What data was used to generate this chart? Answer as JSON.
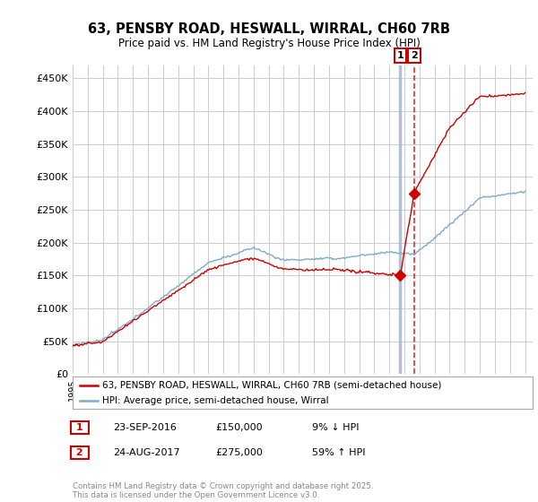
{
  "title_line1": "63, PENSBY ROAD, HESWALL, WIRRAL, CH60 7RB",
  "title_line2": "Price paid vs. HM Land Registry's House Price Index (HPI)",
  "ylim": [
    0,
    470000
  ],
  "yticks": [
    0,
    50000,
    100000,
    150000,
    200000,
    250000,
    300000,
    350000,
    400000,
    450000
  ],
  "ytick_labels": [
    "£0",
    "£50K",
    "£100K",
    "£150K",
    "£200K",
    "£250K",
    "£300K",
    "£350K",
    "£400K",
    "£450K"
  ],
  "x_start_year": 1995,
  "x_end_year": 2025,
  "sale1_date": 2016.73,
  "sale1_price": 150000,
  "sale1_label": "1",
  "sale2_date": 2017.65,
  "sale2_price": 275000,
  "sale2_label": "2",
  "hpi_color": "#7faacc",
  "price_color": "#cc0000",
  "sale1_vline_color": "#aabbcc",
  "sale2_vline_color": "#dd3333",
  "background_color": "#ffffff",
  "grid_color": "#cccccc",
  "legend_label_price": "63, PENSBY ROAD, HESWALL, WIRRAL, CH60 7RB (semi-detached house)",
  "legend_label_hpi": "HPI: Average price, semi-detached house, Wirral",
  "annotation1_date": "23-SEP-2016",
  "annotation1_price": "£150,000",
  "annotation1_hpi": "9% ↓ HPI",
  "annotation2_date": "24-AUG-2017",
  "annotation2_price": "£275,000",
  "annotation2_hpi": "59% ↑ HPI",
  "footnote": "Contains HM Land Registry data © Crown copyright and database right 2025.\nThis data is licensed under the Open Government Licence v3.0."
}
